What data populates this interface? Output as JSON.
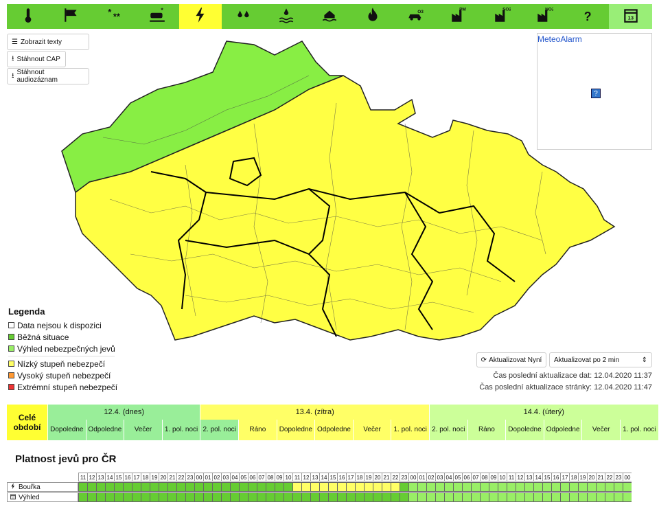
{
  "toolbar": {
    "items": [
      {
        "icon": "thermometer-icon"
      },
      {
        "icon": "wind-icon"
      },
      {
        "icon": "snow-icon"
      },
      {
        "icon": "road-icy-icon"
      },
      {
        "icon": "lightning-icon",
        "active": true
      },
      {
        "icon": "rain-icon"
      },
      {
        "icon": "flood-icon"
      },
      {
        "icon": "flood-house-icon"
      },
      {
        "icon": "fire-icon"
      },
      {
        "icon": "ozone-car-icon"
      },
      {
        "icon": "pm10-factory-icon"
      },
      {
        "icon": "so2-factory-icon"
      },
      {
        "icon": "no2-factory-icon"
      },
      {
        "icon": "help-icon",
        "label": "?"
      },
      {
        "icon": "calendar-icon"
      }
    ]
  },
  "buttons": {
    "show_texts": "Zobrazit texty",
    "download_cap": "Stáhnout CAP",
    "download_audio": "Stáhnout audiozáznam"
  },
  "meteoalarm": {
    "title": "MeteoAlarm",
    "placeholder": "?"
  },
  "legend": {
    "title": "Legenda",
    "items": [
      {
        "label": "Data nejsou k dispozici",
        "color": "#ffffff"
      },
      {
        "label": "Běžná situace",
        "color": "#66cc33"
      },
      {
        "label": "Výhled nebezpečných jevů",
        "color": "#99ee66"
      },
      {
        "label": "Nízký stupeň nebezpečí",
        "color": "#ffff66"
      },
      {
        "label": "Vysoký stupeň nebezpečí",
        "color": "#ff9933"
      },
      {
        "label": "Extrémní stupeň nebezpečí",
        "color": "#ee3333"
      }
    ]
  },
  "update": {
    "refresh_label": "Aktualizovat Nyní",
    "interval_label": "Aktualizovat po 2 min",
    "data_time": "Čas poslední aktualizace dat: 12.04.2020 11:37",
    "page_time": "Čas poslední aktualizace stránky: 12.04.2020 11:47"
  },
  "periods": {
    "whole": "Celé období",
    "days": [
      {
        "label": "12.4. (dnes)",
        "color": "#99ee99",
        "slots": [
          "Dopoledne",
          "Odpoledne",
          "Večer",
          "1. pol. noci"
        ]
      },
      {
        "label": "13.4. (zítra)",
        "color": "#ffff66",
        "slots": [
          "2. pol. noci",
          "Ráno",
          "Dopoledne",
          "Odpoledne",
          "Večer",
          "1. pol. noci"
        ]
      },
      {
        "label": "14.4. (úterý)",
        "color": "#ccff99",
        "slots": [
          "2. pol. noci",
          "Ráno",
          "Dopoledne",
          "Odpoledne",
          "Večer",
          "1. pol. noci"
        ]
      }
    ],
    "slot_colors": [
      "#99ee99",
      "#99ee99",
      "#99ee99",
      "#99ee99",
      "#99ee99",
      "#ffff66",
      "#ffff66",
      "#ffff66",
      "#ffff66",
      "#ffff66",
      "#ccff99",
      "#ccff99",
      "#ccff99",
      "#ccff99",
      "#ccff99",
      "#ccff99"
    ]
  },
  "hourly": {
    "title": "Platnost jevů pro ČR",
    "hours": [
      "11",
      "12",
      "13",
      "14",
      "15",
      "16",
      "17",
      "18",
      "19",
      "20",
      "21",
      "22",
      "23",
      "00",
      "01",
      "02",
      "03",
      "04",
      "05",
      "06",
      "07",
      "08",
      "09",
      "10",
      "11",
      "12",
      "13",
      "14",
      "15",
      "16",
      "17",
      "18",
      "19",
      "20",
      "21",
      "22",
      "23",
      "00",
      "01",
      "02",
      "03",
      "04",
      "05",
      "06",
      "07",
      "08",
      "09",
      "10",
      "11",
      "12",
      "13",
      "14",
      "15",
      "16",
      "17",
      "18",
      "19",
      "20",
      "21",
      "22",
      "23",
      "00"
    ],
    "rows": [
      {
        "label": "Bouřka",
        "icon": "lightning-icon",
        "yellow_from": 24,
        "yellow_to": 36,
        "after": "#99ee66"
      },
      {
        "label": "Výhled",
        "icon": "calendar-icon",
        "yellow_from": -1,
        "yellow_to": -1,
        "after": "#99ee66"
      }
    ]
  }
}
